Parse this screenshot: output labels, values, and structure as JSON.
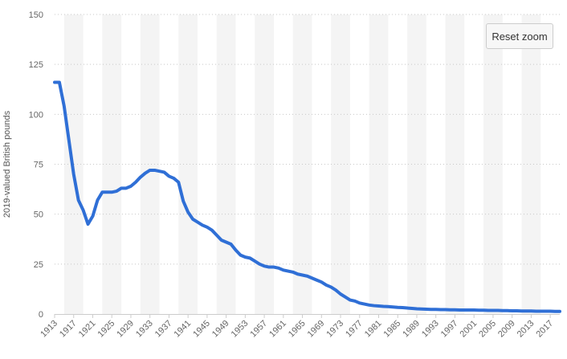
{
  "reset_zoom_label": "Reset zoom",
  "chart_data": {
    "type": "line",
    "title": "",
    "xlabel": "",
    "ylabel": "2019-valued British pounds",
    "xlim": [
      1913,
      2019
    ],
    "ylim": [
      0,
      150
    ],
    "yticks": [
      0,
      25,
      50,
      75,
      100,
      125,
      150
    ],
    "xticks": [
      1913,
      1917,
      1921,
      1925,
      1929,
      1933,
      1937,
      1941,
      1945,
      1949,
      1953,
      1957,
      1961,
      1965,
      1969,
      1973,
      1977,
      1981,
      1985,
      1989,
      1993,
      1997,
      2001,
      2005,
      2009,
      2013,
      2017
    ],
    "grid": "horizontal dotted, alternating vertical bands",
    "line_color": "#2f6fd6",
    "series": [
      {
        "name": "",
        "x": [
          1913,
          1914,
          1915,
          1916,
          1917,
          1918,
          1919,
          1920,
          1921,
          1922,
          1923,
          1924,
          1925,
          1926,
          1927,
          1928,
          1929,
          1930,
          1931,
          1932,
          1933,
          1934,
          1935,
          1936,
          1937,
          1938,
          1939,
          1940,
          1941,
          1942,
          1943,
          1944,
          1945,
          1946,
          1947,
          1948,
          1949,
          1950,
          1951,
          1952,
          1953,
          1954,
          1955,
          1956,
          1957,
          1958,
          1959,
          1960,
          1961,
          1962,
          1963,
          1964,
          1965,
          1966,
          1967,
          1968,
          1969,
          1970,
          1971,
          1972,
          1973,
          1974,
          1975,
          1976,
          1977,
          1978,
          1979,
          1980,
          1981,
          1982,
          1983,
          1984,
          1985,
          1986,
          1987,
          1988,
          1989,
          1990,
          1991,
          1992,
          1993,
          1994,
          1995,
          1996,
          1997,
          1998,
          1999,
          2000,
          2001,
          2002,
          2003,
          2004,
          2005,
          2006,
          2007,
          2008,
          2009,
          2010,
          2011,
          2012,
          2013,
          2014,
          2015,
          2016,
          2017,
          2018,
          2019
        ],
        "values": [
          116,
          116,
          104,
          87,
          70,
          57,
          52,
          45,
          49,
          57,
          61,
          61,
          61,
          61.5,
          63,
          63,
          64,
          66,
          68.5,
          70.5,
          72,
          72,
          71.5,
          71,
          69,
          68,
          66,
          56.5,
          51,
          47.5,
          46,
          44.5,
          43.5,
          42,
          39.5,
          37,
          36,
          35,
          32,
          29.5,
          28.5,
          28,
          26.5,
          25,
          24,
          23.5,
          23.5,
          23,
          22,
          21.5,
          21,
          20,
          19.5,
          19,
          18,
          17,
          16,
          14.5,
          13.5,
          12,
          10,
          8.5,
          7,
          6.5,
          5.5,
          5,
          4.5,
          4.2,
          4,
          3.8,
          3.7,
          3.5,
          3.3,
          3.2,
          3,
          2.8,
          2.6,
          2.5,
          2.4,
          2.3,
          2.3,
          2.2,
          2.2,
          2.1,
          2.1,
          2,
          2,
          2,
          2,
          1.9,
          1.9,
          1.8,
          1.8,
          1.8,
          1.7,
          1.7,
          1.6,
          1.6,
          1.5,
          1.5,
          1.5,
          1.4,
          1.4,
          1.4,
          1.4,
          1.3,
          1.3
        ]
      }
    ]
  }
}
